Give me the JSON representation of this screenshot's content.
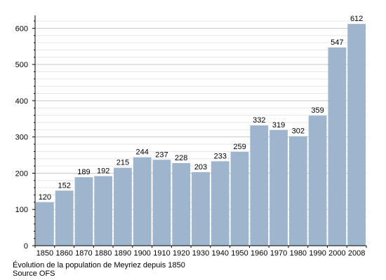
{
  "chart_data": {
    "type": "bar",
    "categories": [
      "1850",
      "1860",
      "1870",
      "1880",
      "1890",
      "1900",
      "1910",
      "1920",
      "1930",
      "1940",
      "1950",
      "1960",
      "1970",
      "1980",
      "1990",
      "2000",
      "2008"
    ],
    "values": [
      120,
      152,
      189,
      192,
      215,
      244,
      237,
      228,
      203,
      233,
      259,
      332,
      319,
      302,
      359,
      547,
      612
    ],
    "ylim": [
      0,
      620
    ],
    "yticks": [
      0,
      100,
      200,
      300,
      400,
      500,
      600
    ],
    "bar_color": "#9fb4cd",
    "grid": true,
    "title": "",
    "xlabel": "",
    "ylabel": ""
  },
  "caption": {
    "line1": "Évolution de la population de Meyriez depuis 1850",
    "line2": "Source OFS"
  }
}
